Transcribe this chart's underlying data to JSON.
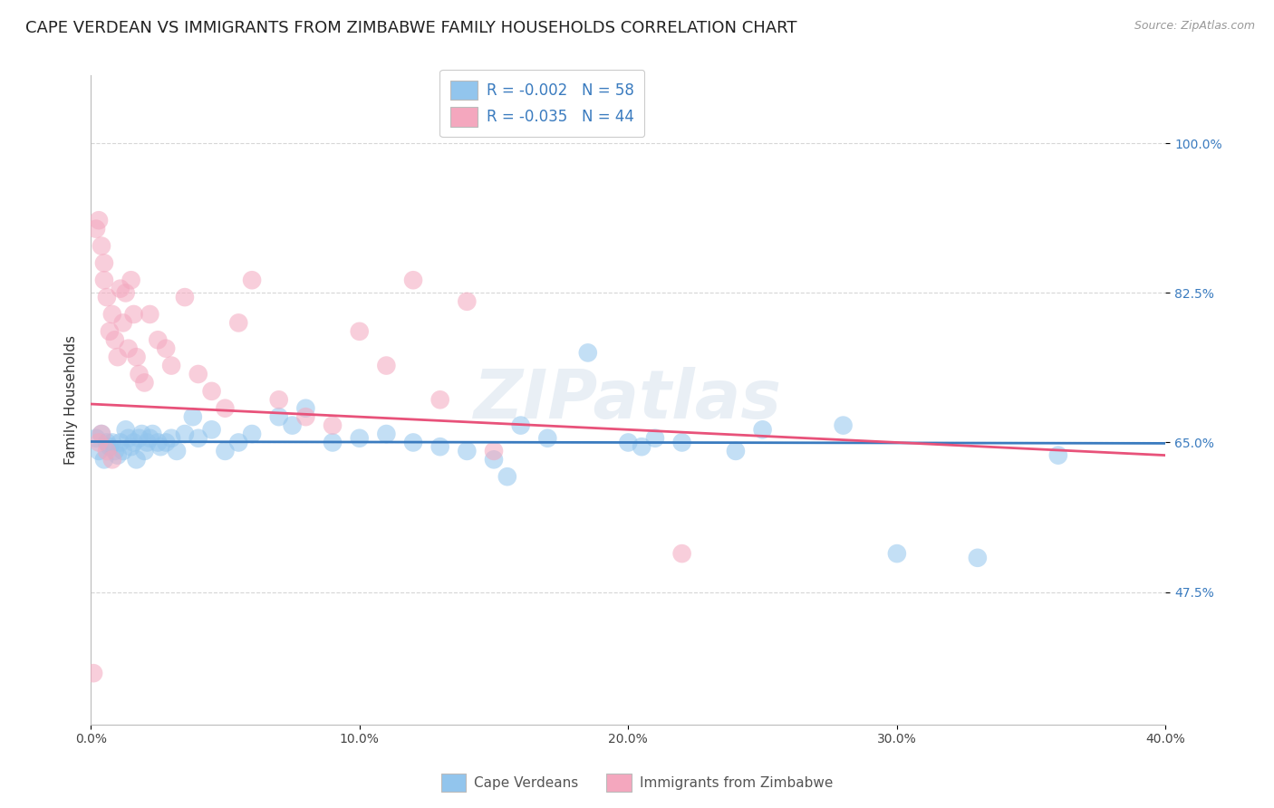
{
  "title": "CAPE VERDEAN VS IMMIGRANTS FROM ZIMBABWE FAMILY HOUSEHOLDS CORRELATION CHART",
  "source": "Source: ZipAtlas.com",
  "ylabel": "Family Households",
  "xlim": [
    0.0,
    40.0
  ],
  "ylim": [
    32.0,
    108.0
  ],
  "yticks": [
    47.5,
    65.0,
    82.5,
    100.0
  ],
  "ytick_labels": [
    "47.5%",
    "65.0%",
    "82.5%",
    "100.0%"
  ],
  "xticks": [
    0.0,
    10.0,
    20.0,
    30.0,
    40.0
  ],
  "xtick_labels": [
    "0.0%",
    "10.0%",
    "20.0%",
    "30.0%",
    "40.0%"
  ],
  "blue_color": "#92c5ed",
  "pink_color": "#f4a7be",
  "blue_line_color": "#3a7bbf",
  "pink_line_color": "#e8527a",
  "legend_text_color": "#3a7bbf",
  "r_blue": -0.002,
  "n_blue": 58,
  "r_pink": -0.035,
  "n_pink": 44,
  "blue_scatter_x": [
    0.2,
    0.3,
    0.4,
    0.5,
    0.6,
    0.7,
    0.8,
    0.9,
    1.0,
    1.1,
    1.2,
    1.3,
    1.4,
    1.5,
    1.6,
    1.7,
    1.8,
    1.9,
    2.0,
    2.1,
    2.2,
    2.3,
    2.5,
    2.6,
    2.8,
    3.0,
    3.2,
    3.5,
    3.8,
    4.0,
    4.5,
    5.0,
    5.5,
    6.0,
    7.0,
    7.5,
    8.0,
    9.0,
    10.0,
    11.0,
    12.0,
    13.0,
    14.0,
    15.0,
    16.0,
    17.0,
    18.5,
    20.0,
    21.0,
    22.0,
    24.0,
    25.0,
    28.0,
    30.0,
    33.0,
    36.0,
    20.5,
    15.5
  ],
  "blue_scatter_y": [
    65.5,
    64.0,
    66.0,
    63.0,
    65.0,
    64.5,
    65.0,
    64.0,
    63.5,
    65.0,
    64.0,
    66.5,
    65.5,
    64.5,
    65.0,
    63.0,
    65.5,
    66.0,
    64.0,
    65.0,
    65.5,
    66.0,
    65.0,
    64.5,
    65.0,
    65.5,
    64.0,
    66.0,
    68.0,
    65.5,
    66.5,
    64.0,
    65.0,
    66.0,
    68.0,
    67.0,
    69.0,
    65.0,
    65.5,
    66.0,
    65.0,
    64.5,
    64.0,
    63.0,
    67.0,
    65.5,
    75.5,
    65.0,
    65.5,
    65.0,
    64.0,
    66.5,
    67.0,
    52.0,
    51.5,
    63.5,
    64.5,
    61.0
  ],
  "pink_scatter_x": [
    0.1,
    0.2,
    0.3,
    0.4,
    0.5,
    0.5,
    0.6,
    0.7,
    0.8,
    0.9,
    1.0,
    1.1,
    1.2,
    1.3,
    1.4,
    1.5,
    1.6,
    1.7,
    1.8,
    2.0,
    2.2,
    2.5,
    2.8,
    3.0,
    3.5,
    4.0,
    4.5,
    5.0,
    5.5,
    6.0,
    7.0,
    8.0,
    9.0,
    10.0,
    11.0,
    12.0,
    13.0,
    14.0,
    15.0,
    22.0,
    0.4,
    0.6,
    0.8,
    0.3
  ],
  "pink_scatter_y": [
    38.0,
    90.0,
    91.0,
    88.0,
    86.0,
    84.0,
    82.0,
    78.0,
    80.0,
    77.0,
    75.0,
    83.0,
    79.0,
    82.5,
    76.0,
    84.0,
    80.0,
    75.0,
    73.0,
    72.0,
    80.0,
    77.0,
    76.0,
    74.0,
    82.0,
    73.0,
    71.0,
    69.0,
    79.0,
    84.0,
    70.0,
    68.0,
    67.0,
    78.0,
    74.0,
    84.0,
    70.0,
    81.5,
    64.0,
    52.0,
    66.0,
    64.0,
    63.0,
    65.0
  ],
  "blue_trendline_x": [
    0.0,
    40.0
  ],
  "blue_trendline_y": [
    65.1,
    64.9
  ],
  "pink_trendline_x": [
    0.0,
    40.0
  ],
  "pink_trendline_y": [
    69.5,
    63.5
  ],
  "watermark": "ZIPatlas",
  "background_color": "#ffffff",
  "title_fontsize": 13,
  "axis_label_fontsize": 11,
  "tick_fontsize": 10,
  "legend_entry1": "R = -0.002   N = 58",
  "legend_entry2": "R = -0.035   N = 44",
  "bottom_legend1": "Cape Verdeans",
  "bottom_legend2": "Immigrants from Zimbabwe"
}
